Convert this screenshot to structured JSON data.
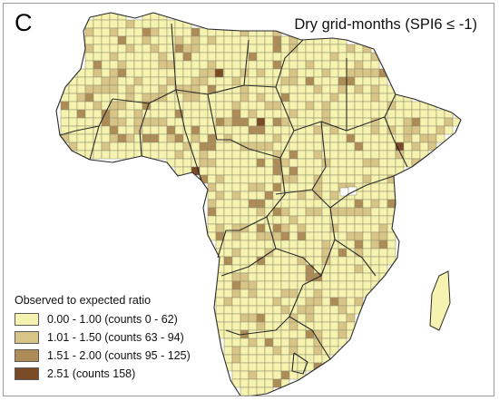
{
  "panel_label": "C",
  "title": "Dry grid-months (SPI6 ≤ -1)",
  "legend": {
    "title": "Observed to expected ratio",
    "items": [
      {
        "label": "0.00 - 1.00 (counts 0 - 62)",
        "color": "#f6f3b0"
      },
      {
        "label": "1.01 - 1.50 (counts 63 - 94)",
        "color": "#d8c486"
      },
      {
        "label": "1.51 - 2.00 (counts 95 - 125)",
        "color": "#ae8c57"
      },
      {
        "label": "2.51 (counts 158)",
        "color": "#7a4a26"
      }
    ]
  },
  "colors": {
    "grid_line": "#8c8c6a",
    "border_line": "#2a2a2a",
    "missing_cell": "#ffffff"
  }
}
